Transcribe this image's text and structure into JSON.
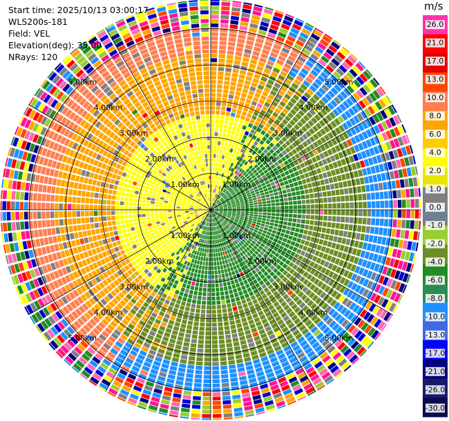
{
  "header": {
    "start_time": "Start time: 2025/10/13 03:00:17",
    "site": "WLS200s-181",
    "field": "Field: VEL",
    "elevation": "Elevation(deg): 35.00",
    "nrays": "NRays: 120"
  },
  "chart_data": {
    "type": "ppi",
    "title": "",
    "field": "VEL",
    "units": "m/s",
    "range_rings_km": [
      1.0,
      2.0,
      3.0,
      4.0,
      5.0
    ],
    "range_ring_labels": [
      "1.00km",
      "2.00km",
      "3.00km",
      "4.00km",
      "5.00km"
    ],
    "azimuth_lines_deg": [
      0,
      30,
      60,
      90,
      120,
      150,
      180,
      210,
      240,
      270,
      300,
      330
    ],
    "max_range_km": 5.8,
    "nrays": 120,
    "colorbar": {
      "label": "m/s",
      "ticks": [
        "26.0",
        "21.0",
        "17.0",
        "13.0",
        "10.0",
        "8.0",
        "6.0",
        "4.0",
        "2.0",
        "1.0",
        "0.0",
        "-1.0",
        "-2.0",
        "-4.0",
        "-6.0",
        "-8.0",
        "-10.0",
        "-13.0",
        "-17.0",
        "-21.0",
        "-26.0",
        "-30.0"
      ],
      "colors": [
        "#ff33aa",
        "#ff0000",
        "#e60000",
        "#ff4500",
        "#ff7f50",
        "#ffa500",
        "#ffcc00",
        "#ffff00",
        "#e6e600",
        "#808080",
        "#708090",
        "#9acd32",
        "#6b8e23",
        "#228b22",
        "#2e8b57",
        "#1e90ff",
        "#4169e1",
        "#0000ff",
        "#000080",
        "#191970",
        "#0a0a50"
      ]
    },
    "radial_profile": {
      "zones": [
        {
          "from_km": 0.0,
          "to_km": 2.6,
          "approach_color": "#ffff00",
          "recede_color": "#228b22"
        },
        {
          "from_km": 2.6,
          "to_km": 4.3,
          "approach_color": "#ffa500",
          "recede_color": "#6b8e23"
        },
        {
          "from_km": 4.3,
          "to_km": 5.0,
          "approach_color": "#ff7f50",
          "recede_color": "#1e90ff"
        },
        {
          "from_km": 5.0,
          "to_km": 5.8,
          "approach_color": "noise",
          "recede_color": "noise"
        }
      ]
    }
  }
}
